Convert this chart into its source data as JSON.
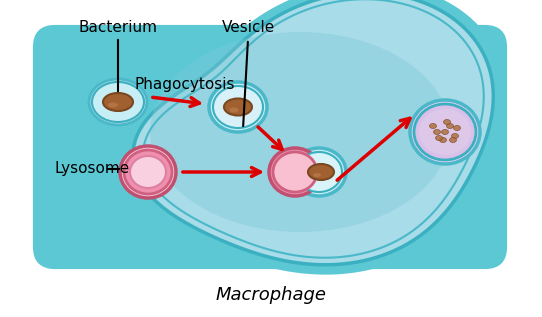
{
  "background_color": "#ffffff",
  "cell_outer_color": "#5bc8d4",
  "cell_inner_color": "#a8dce8",
  "cell_cytoplasm_color": "#7ec8d8",
  "vesicle_outline_color": "#4ab8c8",
  "vesicle_fill_color": "#c8eef5",
  "lysosome_outer_color": "#e87090",
  "lysosome_inner_color": "#f0a0b8",
  "lysosome_fill_color": "#f8c8d8",
  "bacterium_color": "#a06030",
  "bacterium_dark": "#7a4820",
  "pink_fill": "#f090b0",
  "purple_fill": "#d0b0d8",
  "digested_color": "#b07040",
  "arrow_color": "#dd0000",
  "label_color": "#000000",
  "title": "Macrophage",
  "labels": {
    "bacterium": "Bacterium",
    "vesicle": "Vesicle",
    "phagocytosis": "Phagocytosis",
    "lysosome": "Lysosome"
  }
}
